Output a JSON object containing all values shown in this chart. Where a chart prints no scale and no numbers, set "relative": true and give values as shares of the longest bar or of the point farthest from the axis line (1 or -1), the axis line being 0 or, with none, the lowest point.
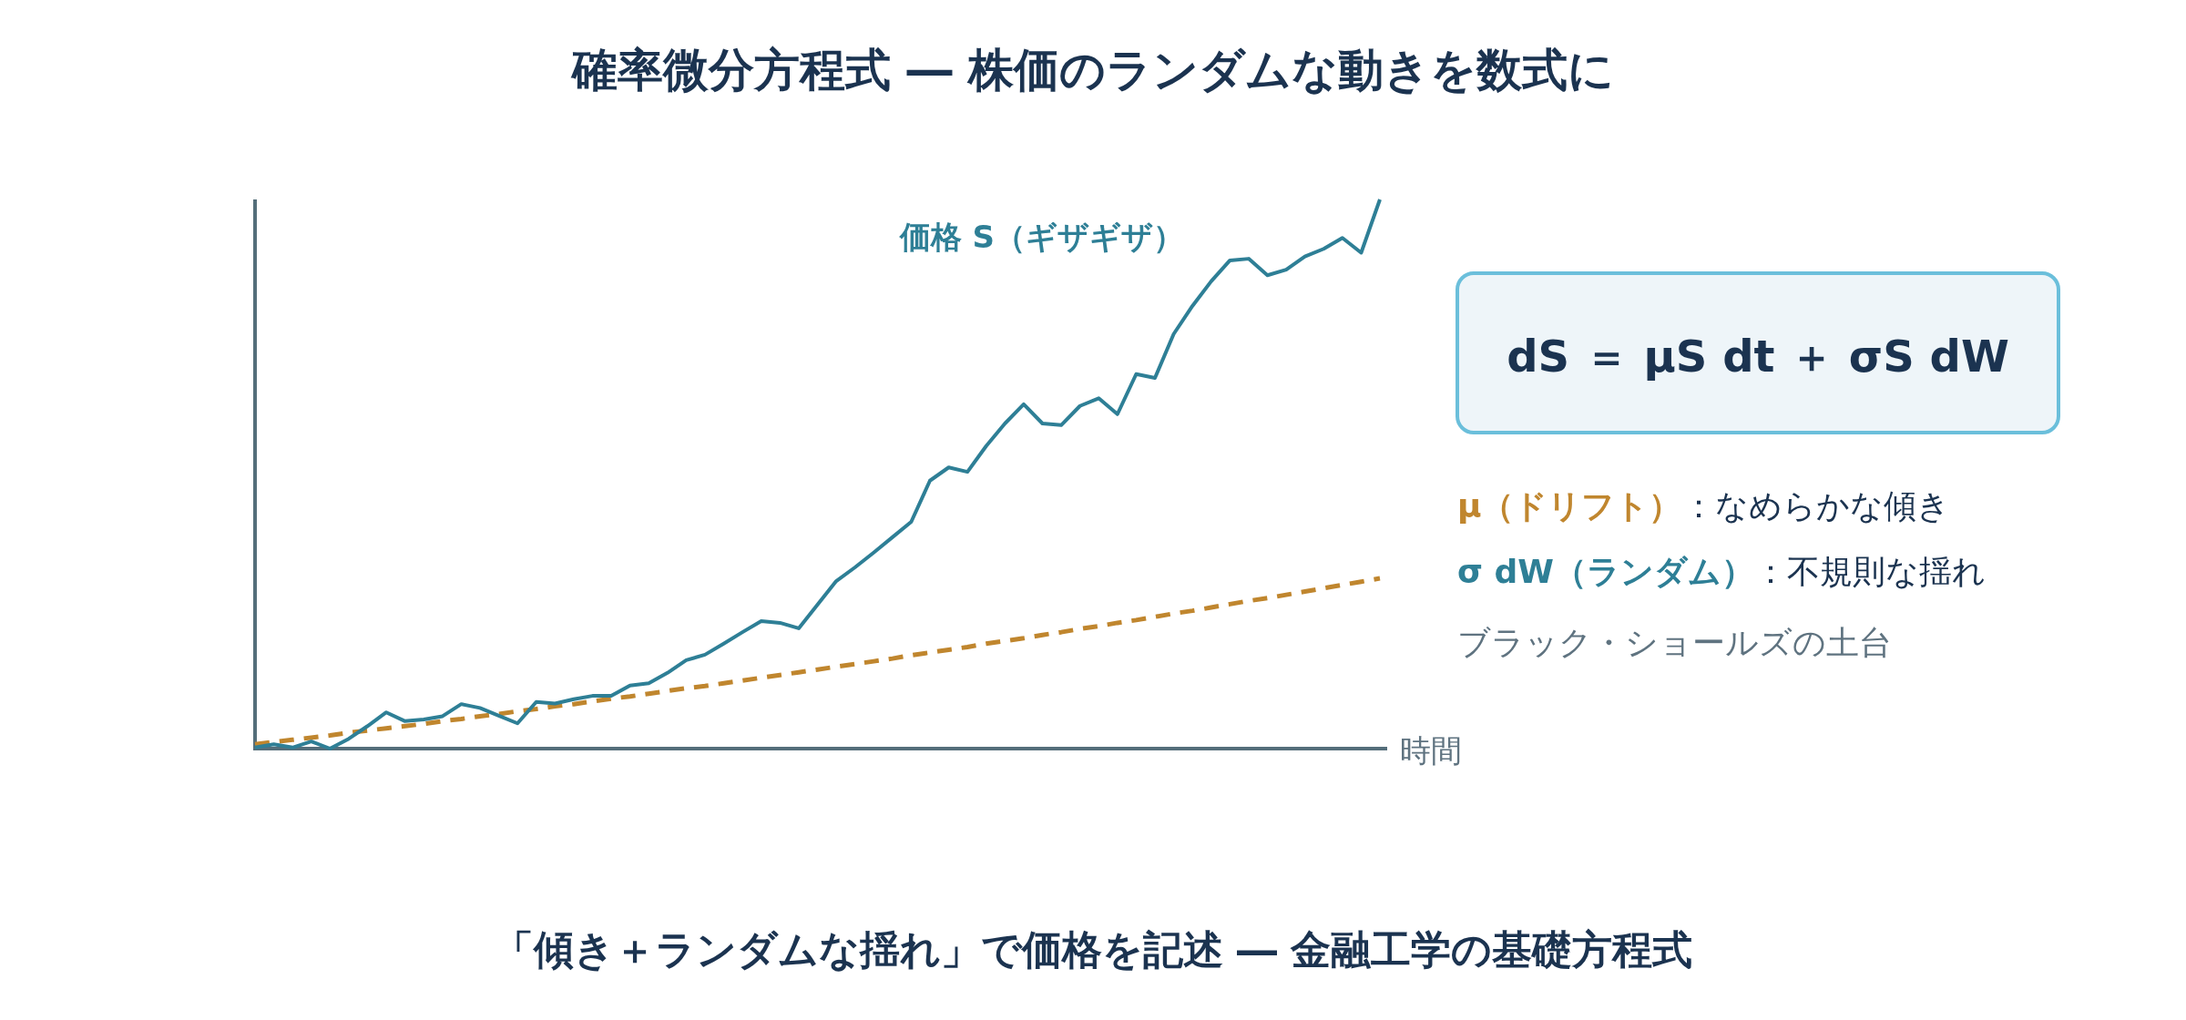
{
  "chart_data": {
    "type": "line",
    "title": "確率微分方程式 ― 株価のランダムな動きを数式に",
    "xlabel": "時間",
    "relative": true,
    "categories": [
      null,
      null,
      null,
      null,
      null,
      null,
      null,
      null,
      null,
      null,
      null,
      null,
      null,
      null,
      null,
      null,
      null,
      null,
      null,
      null,
      null,
      null,
      null,
      null,
      null,
      null,
      null,
      null,
      null,
      null,
      null,
      null,
      null,
      null,
      null,
      null,
      null,
      null,
      null,
      null,
      null,
      null,
      null,
      null,
      null,
      null,
      null,
      null,
      null,
      null,
      null,
      null,
      null,
      null,
      null,
      null,
      null,
      null,
      null,
      null,
      null
    ],
    "series": [
      {
        "name": "価格 S（ギザギザ）",
        "color": "#2e7f96",
        "line_style": "solid",
        "values": [
          0.002,
          0.008,
          0.002,
          0.013,
          0.0,
          0.018,
          0.041,
          0.066,
          0.05,
          0.053,
          0.059,
          0.081,
          0.074,
          0.06,
          0.046,
          0.085,
          0.082,
          0.09,
          0.096,
          0.096,
          0.115,
          0.119,
          0.138,
          0.161,
          0.171,
          0.191,
          0.212,
          0.232,
          0.229,
          0.219,
          0.262,
          0.305,
          0.33,
          0.357,
          0.385,
          0.413,
          0.488,
          0.512,
          0.504,
          0.551,
          0.592,
          0.627,
          0.592,
          0.589,
          0.624,
          0.638,
          0.609,
          0.682,
          0.675,
          0.755,
          0.806,
          0.851,
          0.889,
          0.892,
          0.862,
          0.872,
          0.896,
          0.91,
          0.93,
          0.903,
          1.0
        ]
      },
      {
        "color": "#c0862e",
        "line_style": "dashed",
        "values": [
          0.008,
          0.012,
          0.016,
          0.02,
          0.024,
          0.029,
          0.033,
          0.037,
          0.041,
          0.045,
          0.05,
          0.054,
          0.059,
          0.063,
          0.068,
          0.072,
          0.077,
          0.081,
          0.086,
          0.091,
          0.095,
          0.1,
          0.105,
          0.11,
          0.114,
          0.119,
          0.124,
          0.129,
          0.134,
          0.139,
          0.144,
          0.149,
          0.154,
          0.159,
          0.164,
          0.17,
          0.175,
          0.18,
          0.185,
          0.191,
          0.196,
          0.201,
          0.207,
          0.212,
          0.218,
          0.223,
          0.229,
          0.234,
          0.24,
          0.246,
          0.251,
          0.257,
          0.263,
          0.269,
          0.274,
          0.28,
          0.286,
          0.292,
          0.298,
          0.304,
          0.31
        ]
      }
    ],
    "annotations": [
      "dS ＝ μS dt ＋ σS dW",
      "**μ（ドリフト）**：なめらかな傾き",
      "**σ dW（ランダム）**：不規則な揺れ",
      "ブラック・ショールズの土台",
      "「傾き＋ランダムな揺れ」で価格を記述 ― 金融工学の基礎方程式"
    ]
  }
}
